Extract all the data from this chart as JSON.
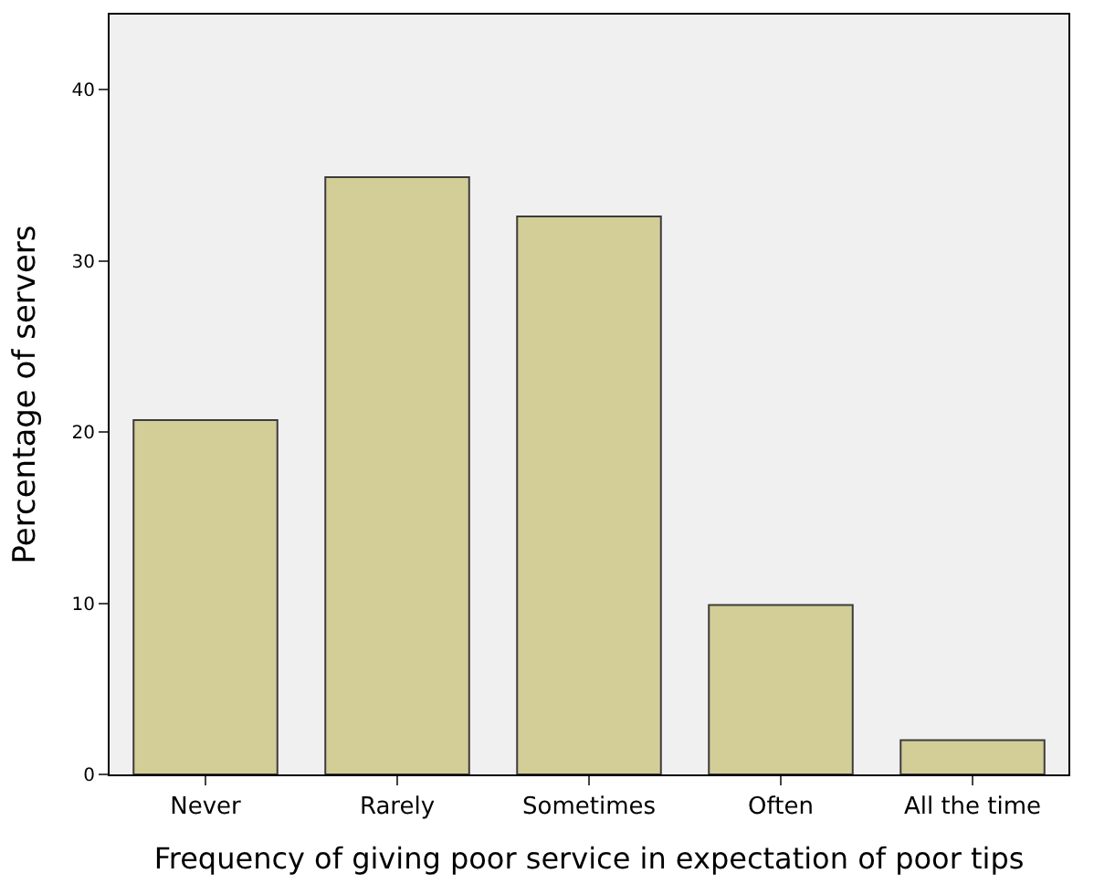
{
  "chart_data": {
    "type": "bar",
    "xlabel": "Frequency of giving poor service in expectation of poor tips",
    "ylabel": "Percentage of servers",
    "categories": [
      "Never",
      "Rarely",
      "Sometimes",
      "Often",
      "All the time"
    ],
    "values": [
      20.7,
      34.9,
      32.6,
      9.9,
      2.0
    ],
    "color": "#d3ce98",
    "ylim": [
      0,
      44.4
    ],
    "yticks": [
      0,
      10,
      20,
      30,
      40
    ],
    "grid": false
  }
}
